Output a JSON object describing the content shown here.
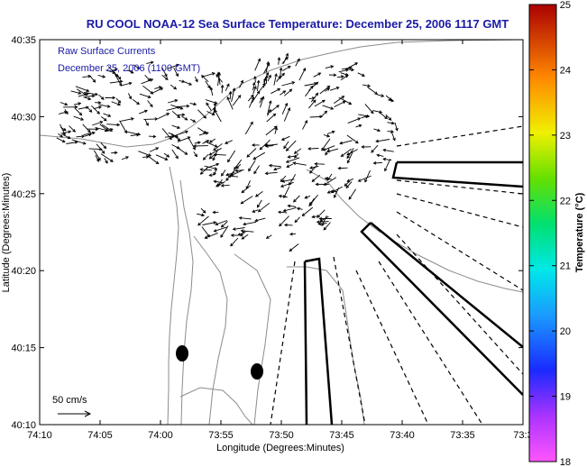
{
  "title": "RU COOL  NOAA-12  Sea Surface Temperature:  December 25, 2006 1117 GMT",
  "legend": {
    "line1": "Raw Surface Currents",
    "line2": "December 25, 2006 (1100 GMT)"
  },
  "scale": {
    "label": "50 cm/s"
  },
  "axes": {
    "xlabel": "Longitude (Degrees:Minutes)",
    "ylabel": "Latitude (Degrees:Minutes)",
    "xticks": [
      "74:10",
      "74:05",
      "74:00",
      "73:55",
      "73:50",
      "73:45",
      "73:40",
      "73:35",
      "73:3"
    ],
    "yticks": [
      "40:10",
      "40:15",
      "40:20",
      "40:25",
      "40:30",
      "40:35"
    ]
  },
  "colorbar": {
    "label": "Temperature (°C)",
    "ticks": [
      "18",
      "19",
      "20",
      "21",
      "22",
      "23",
      "24",
      "25"
    ],
    "min": 18,
    "max": 25
  },
  "colors": {
    "title": "#1a1aa6",
    "contour": "#8c8c8c",
    "vector": "#000000"
  }
}
